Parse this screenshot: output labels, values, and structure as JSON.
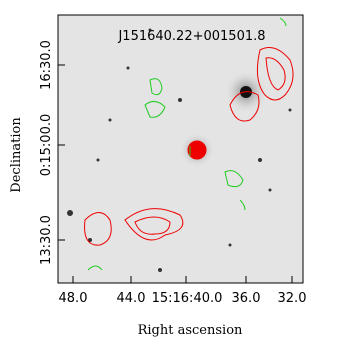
{
  "figure": {
    "title": "J151640.22+001501.8",
    "x_label": "Right ascension",
    "y_label": "Declination",
    "x_ticks": [
      "48.0",
      "44.0",
      "15:16:40.0",
      "36.0",
      "32.0"
    ],
    "y_ticks": [
      "16:30.0",
      "0:15:00.0",
      "13:30.0"
    ]
  }
}
